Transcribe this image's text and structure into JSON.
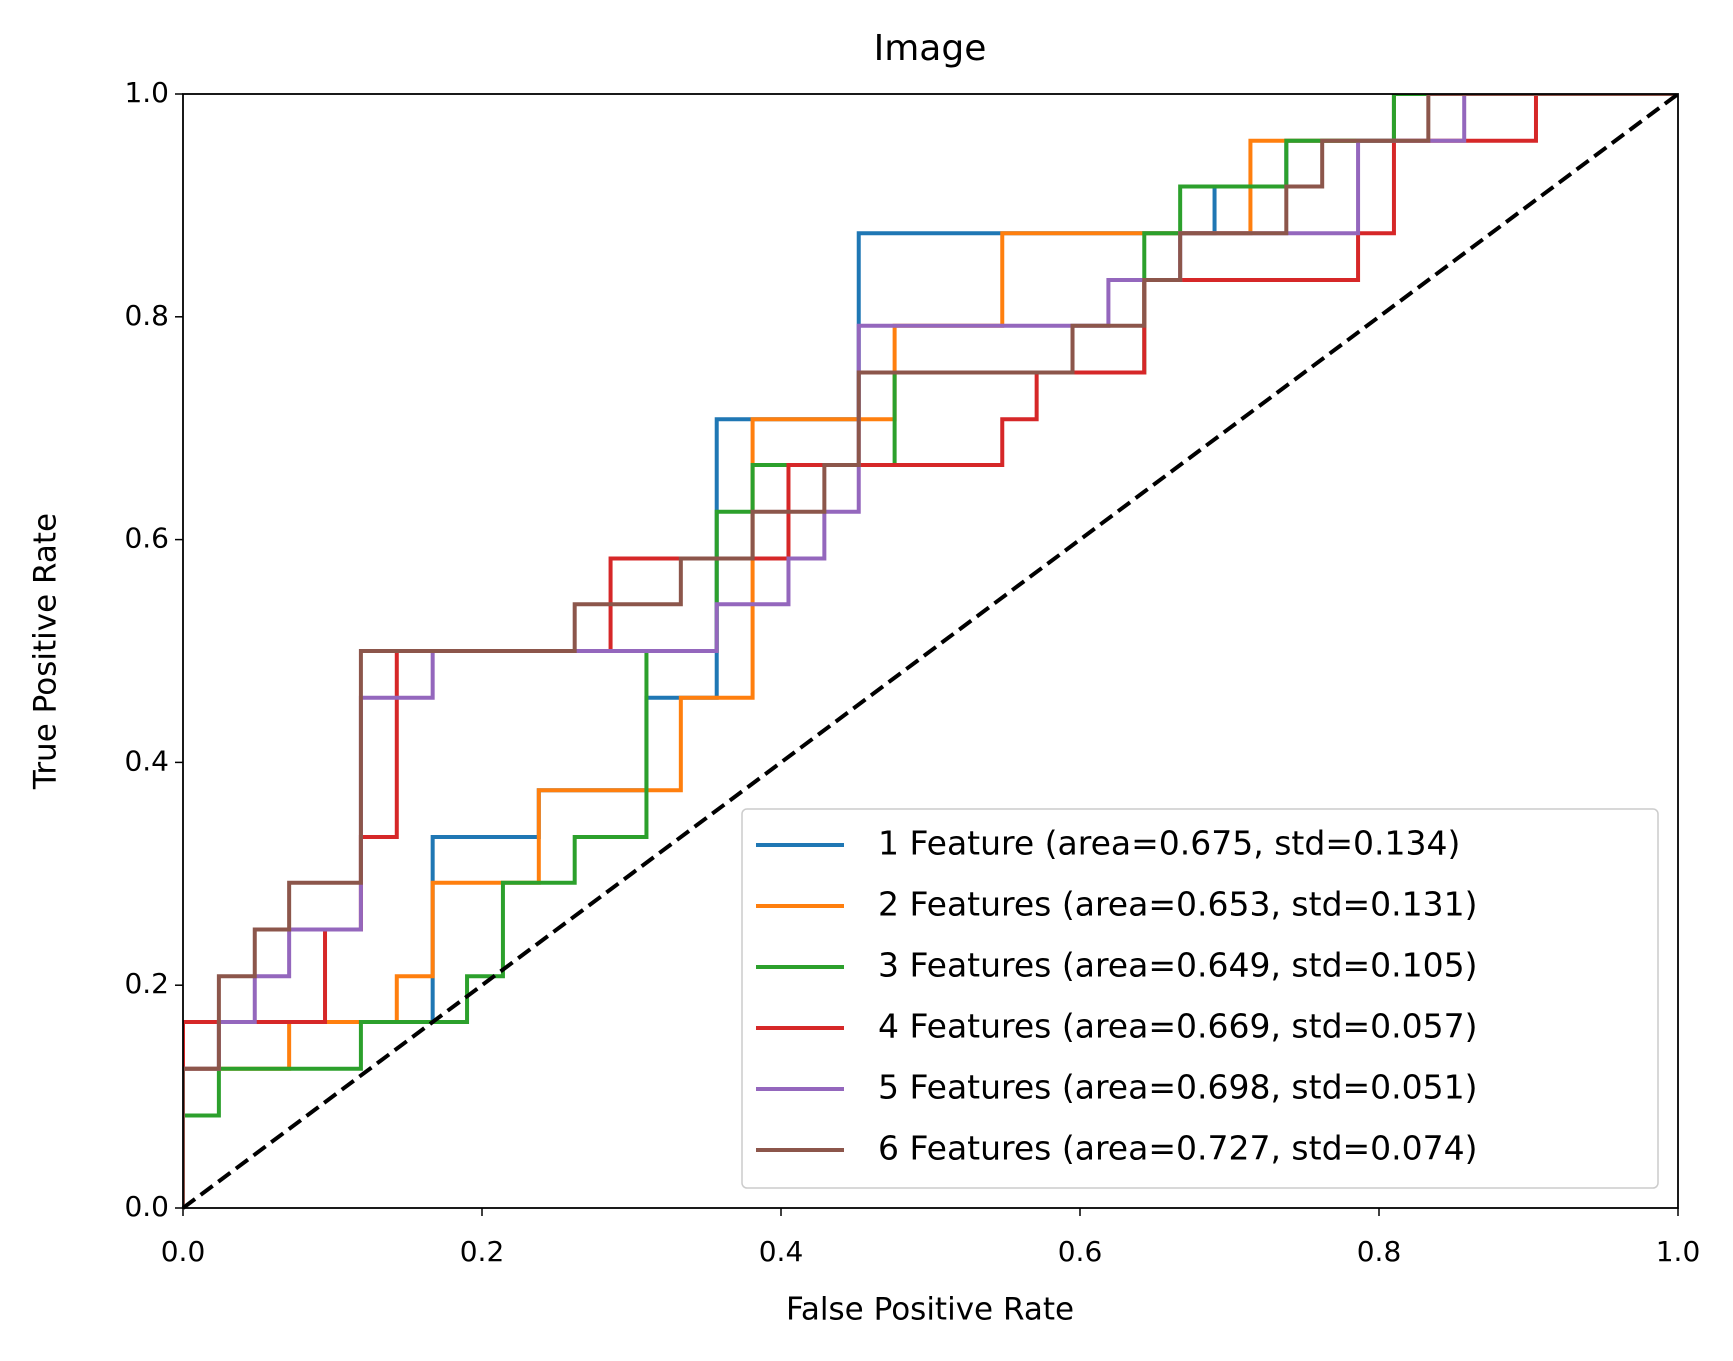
{
  "chart_data": {
    "type": "line",
    "step": true,
    "title": "Image",
    "xlabel": "False Positive Rate",
    "ylabel": "True Positive Rate",
    "xlim": [
      0,
      1
    ],
    "ylim": [
      0,
      1
    ],
    "xticks": [
      {
        "value": 0,
        "label": "0.0"
      },
      0.2,
      0.4,
      0.6,
      0.8,
      {
        "value": 1,
        "label": "1.0"
      }
    ],
    "yticks": [
      {
        "value": 0,
        "label": "0.0"
      },
      0.2,
      0.4,
      0.6,
      0.8,
      {
        "value": 1,
        "label": "1.0"
      }
    ],
    "grid": false,
    "legend": "lower right",
    "reference_line": {
      "x": [
        0,
        1
      ],
      "y": [
        0,
        1
      ],
      "color": "#000000",
      "dashed": true
    },
    "series": [
      {
        "name": "1 Feature (area=0.675, std=0.134)",
        "color": "#1f77b4",
        "x": [
          0,
          0,
          0.167,
          0.167,
          0.238,
          0.238,
          0.31,
          0.31,
          0.357,
          0.357,
          0.452,
          0.452,
          0.69,
          0.69,
          0.738,
          0.738,
          0.81,
          0.81,
          1
        ],
        "values": [
          0,
          0.167,
          0.167,
          0.333,
          0.333,
          0.375,
          0.375,
          0.458,
          0.458,
          0.708,
          0.708,
          0.875,
          0.875,
          0.917,
          0.917,
          0.958,
          0.958,
          1,
          1
        ]
      },
      {
        "name": "2 Features (area=0.653, std=0.131)",
        "color": "#ff7f0e",
        "x": [
          0,
          0,
          0.071,
          0.071,
          0.143,
          0.143,
          0.167,
          0.167,
          0.238,
          0.238,
          0.333,
          0.333,
          0.381,
          0.381,
          0.476,
          0.476,
          0.548,
          0.548,
          0.714,
          0.714,
          0.81,
          0.81,
          1
        ],
        "values": [
          0,
          0.125,
          0.125,
          0.167,
          0.167,
          0.208,
          0.208,
          0.292,
          0.292,
          0.375,
          0.375,
          0.458,
          0.458,
          0.708,
          0.708,
          0.792,
          0.792,
          0.875,
          0.875,
          0.958,
          0.958,
          1,
          1
        ]
      },
      {
        "name": "3 Features (area=0.649, std=0.105)",
        "color": "#2ca02c",
        "x": [
          0,
          0,
          0.024,
          0.024,
          0.119,
          0.119,
          0.19,
          0.19,
          0.214,
          0.214,
          0.262,
          0.262,
          0.31,
          0.31,
          0.357,
          0.357,
          0.381,
          0.381,
          0.476,
          0.476,
          0.643,
          0.643,
          0.667,
          0.667,
          0.738,
          0.738,
          0.81,
          0.81,
          1
        ],
        "values": [
          0,
          0.083,
          0.083,
          0.125,
          0.125,
          0.167,
          0.167,
          0.208,
          0.208,
          0.292,
          0.292,
          0.333,
          0.333,
          0.5,
          0.5,
          0.625,
          0.625,
          0.667,
          0.667,
          0.75,
          0.75,
          0.875,
          0.875,
          0.917,
          0.917,
          0.958,
          0.958,
          1,
          1
        ]
      },
      {
        "name": "4 Features (area=0.669, std=0.057)",
        "color": "#d62728",
        "x": [
          0,
          0,
          0.095,
          0.095,
          0.119,
          0.119,
          0.143,
          0.143,
          0.286,
          0.286,
          0.405,
          0.405,
          0.548,
          0.548,
          0.571,
          0.571,
          0.643,
          0.643,
          0.786,
          0.786,
          0.81,
          0.81,
          0.905,
          0.905,
          1
        ],
        "values": [
          0,
          0.167,
          0.167,
          0.25,
          0.25,
          0.333,
          0.333,
          0.5,
          0.5,
          0.583,
          0.583,
          0.667,
          0.667,
          0.708,
          0.708,
          0.75,
          0.75,
          0.833,
          0.833,
          0.875,
          0.875,
          0.958,
          0.958,
          1,
          1
        ]
      },
      {
        "name": "5 Features (area=0.698, std=0.051)",
        "color": "#9467bd",
        "x": [
          0,
          0,
          0.024,
          0.024,
          0.048,
          0.048,
          0.071,
          0.071,
          0.119,
          0.119,
          0.167,
          0.167,
          0.357,
          0.357,
          0.405,
          0.405,
          0.429,
          0.429,
          0.452,
          0.452,
          0.619,
          0.619,
          0.667,
          0.667,
          0.786,
          0.786,
          0.857,
          0.857,
          1
        ],
        "values": [
          0,
          0.125,
          0.125,
          0.167,
          0.167,
          0.208,
          0.208,
          0.25,
          0.25,
          0.458,
          0.458,
          0.5,
          0.5,
          0.542,
          0.542,
          0.583,
          0.583,
          0.625,
          0.625,
          0.792,
          0.792,
          0.833,
          0.833,
          0.875,
          0.875,
          0.958,
          0.958,
          1,
          1
        ]
      },
      {
        "name": "6 Features (area=0.727, std=0.074)",
        "color": "#8c564b",
        "x": [
          0,
          0,
          0.024,
          0.024,
          0.048,
          0.048,
          0.071,
          0.071,
          0.119,
          0.119,
          0.262,
          0.262,
          0.333,
          0.333,
          0.381,
          0.381,
          0.429,
          0.429,
          0.452,
          0.452,
          0.595,
          0.595,
          0.643,
          0.643,
          0.667,
          0.667,
          0.738,
          0.738,
          0.762,
          0.762,
          0.833,
          0.833,
          1
        ],
        "values": [
          0,
          0.125,
          0.125,
          0.208,
          0.208,
          0.25,
          0.25,
          0.292,
          0.292,
          0.5,
          0.5,
          0.542,
          0.542,
          0.583,
          0.583,
          0.625,
          0.625,
          0.667,
          0.667,
          0.75,
          0.75,
          0.792,
          0.792,
          0.833,
          0.833,
          0.875,
          0.875,
          0.917,
          0.917,
          0.958,
          0.958,
          1,
          1
        ]
      }
    ]
  }
}
